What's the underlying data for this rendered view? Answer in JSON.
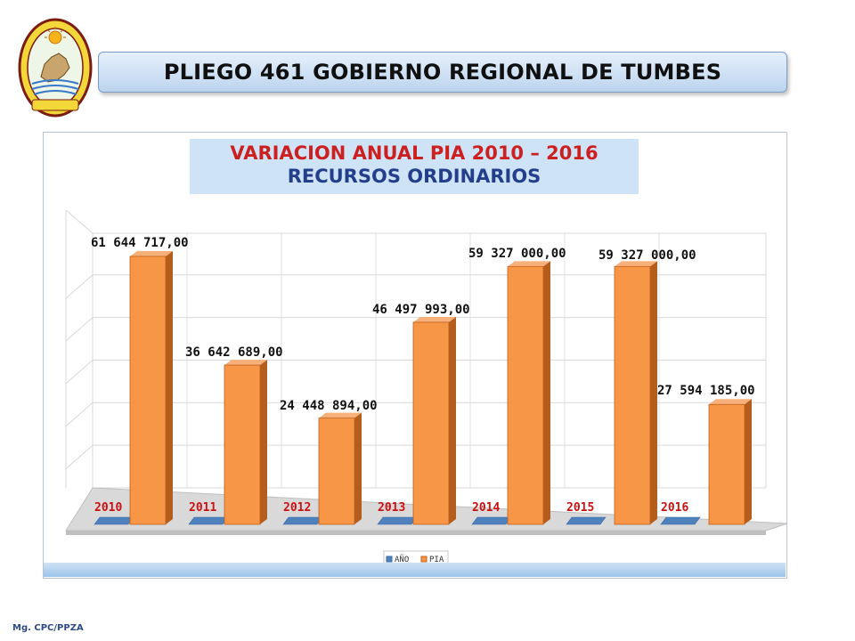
{
  "header": {
    "title": "PLIEGO 461 GOBIERNO REGIONAL DE TUMBES"
  },
  "logo": {
    "top_text": "GOBIERNO REGIONAL",
    "bottom_text": "TUMBES"
  },
  "chart_title": {
    "line1": "VARIACION ANUAL PIA 2010 – 2016",
    "line2": "RECURSOS ORDINARIOS"
  },
  "footer": {
    "note": "Mg. CPC/PPZA"
  },
  "chart_data": {
    "type": "bar",
    "categories": [
      "2010",
      "2011",
      "2012",
      "2013",
      "2014",
      "2015",
      "2016"
    ],
    "series": [
      {
        "name": "AÑO",
        "values": [
          0,
          0,
          0,
          0,
          0,
          0,
          0
        ],
        "color": "#4f81bd"
      },
      {
        "name": "PIA",
        "values": [
          61644717,
          36642689,
          24448894,
          46497993,
          59327000,
          59327000,
          27594185
        ],
        "color": "#f79646"
      }
    ],
    "data_labels": [
      "61 644 717,00",
      "36 642 689,00",
      "24 448 894,00",
      "46 497 993,00",
      "59 327 000,00",
      "59 327 000,00",
      "27 594 185,00"
    ],
    "ylim": [
      0,
      70000000
    ],
    "grid": true,
    "legend": "bottom",
    "three_d": true
  }
}
